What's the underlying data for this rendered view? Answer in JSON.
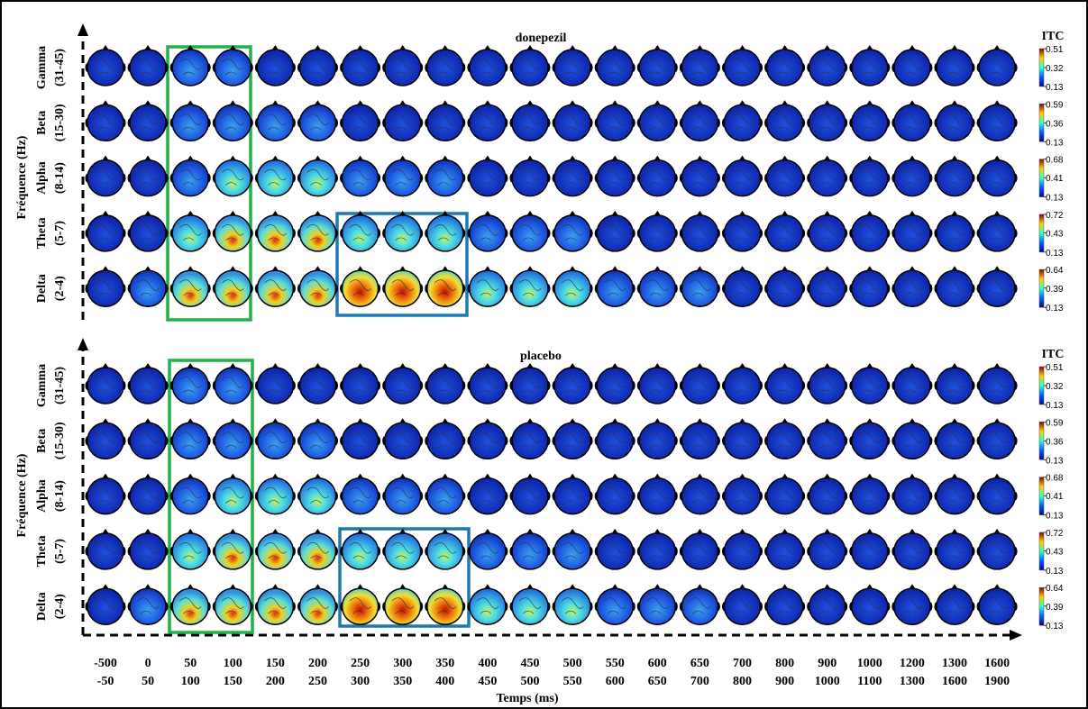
{
  "y_label": "Fréquence (Hz)",
  "x_label": "Temps (ms)",
  "time_windows": [
    [
      "-500",
      "-50"
    ],
    [
      "0",
      "50"
    ],
    [
      "50",
      "100"
    ],
    [
      "100",
      "150"
    ],
    [
      "150",
      "200"
    ],
    [
      "200",
      "250"
    ],
    [
      "250",
      "300"
    ],
    [
      "300",
      "350"
    ],
    [
      "350",
      "400"
    ],
    [
      "400",
      "450"
    ],
    [
      "450",
      "500"
    ],
    [
      "500",
      "550"
    ],
    [
      "550",
      "600"
    ],
    [
      "600",
      "650"
    ],
    [
      "650",
      "700"
    ],
    [
      "700",
      "800"
    ],
    [
      "800",
      "900"
    ],
    [
      "900",
      "1000"
    ],
    [
      "1000",
      "1100"
    ],
    [
      "1200",
      "1300"
    ],
    [
      "1300",
      "1600"
    ],
    [
      "1600",
      "1900"
    ]
  ],
  "panels": [
    {
      "title": "donepezil",
      "colorbar_title": "ITC",
      "bands": [
        {
          "name": "Gamma",
          "range": "(31-45)",
          "ticks": [
            0.51,
            0.32,
            0.13
          ]
        },
        {
          "name": "Beta",
          "range": "(15-30)",
          "ticks": [
            0.59,
            0.36,
            0.13
          ]
        },
        {
          "name": "Alpha",
          "range": "(8-14)",
          "ticks": [
            0.68,
            0.41,
            0.13
          ]
        },
        {
          "name": "Theta",
          "range": "(5-7)",
          "ticks": [
            0.72,
            0.43,
            0.13
          ]
        },
        {
          "name": "Delta",
          "range": "(2-4)",
          "ticks": [
            0.64,
            0.39,
            0.13
          ]
        }
      ]
    },
    {
      "title": "placebo",
      "colorbar_title": "ITC",
      "bands": [
        {
          "name": "Gamma",
          "range": "(31-45)",
          "ticks": [
            0.51,
            0.32,
            0.13
          ]
        },
        {
          "name": "Beta",
          "range": "(15-30)",
          "ticks": [
            0.59,
            0.36,
            0.13
          ]
        },
        {
          "name": "Alpha",
          "range": "(8-14)",
          "ticks": [
            0.68,
            0.41,
            0.13
          ]
        },
        {
          "name": "Theta",
          "range": "(5-7)",
          "ticks": [
            0.72,
            0.43,
            0.13
          ]
        },
        {
          "name": "Delta",
          "range": "(2-4)",
          "ticks": [
            0.64,
            0.39,
            0.13
          ]
        }
      ]
    }
  ]
}
